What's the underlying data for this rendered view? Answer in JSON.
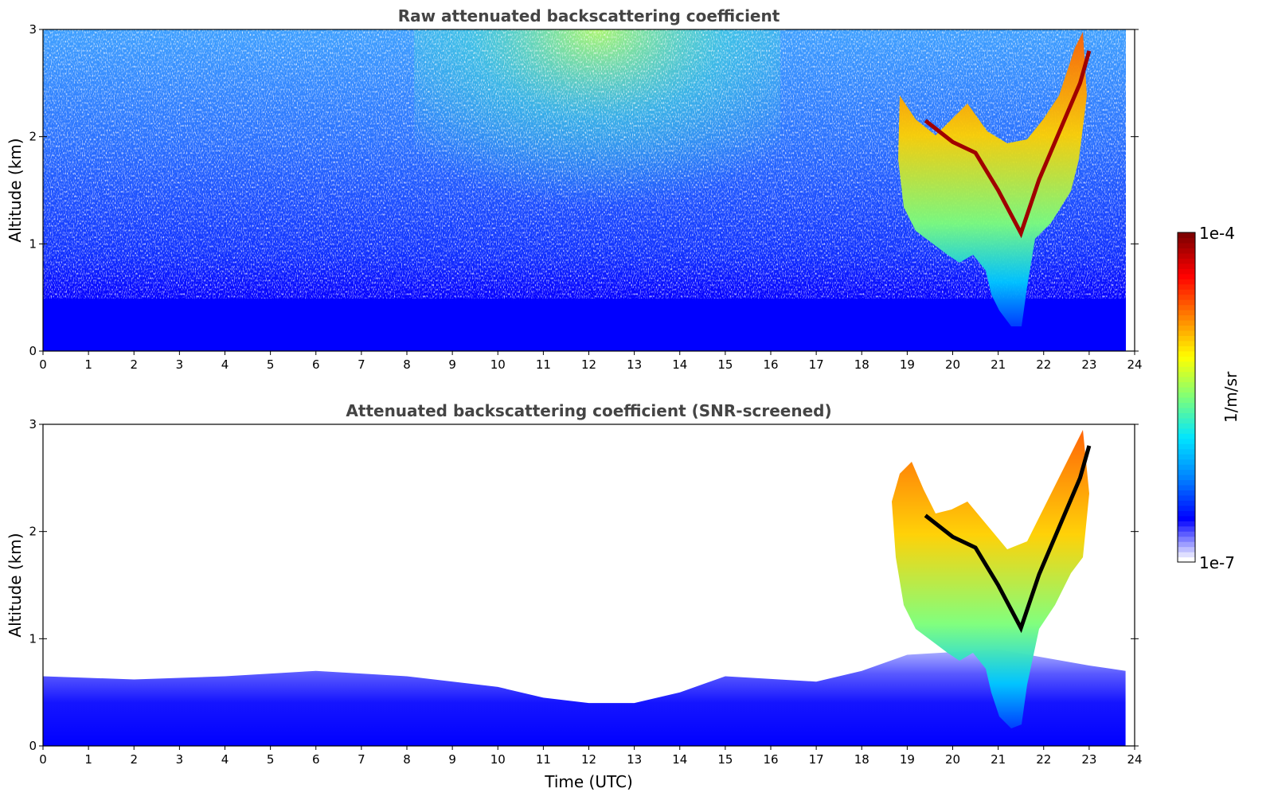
{
  "colormap": [
    "#ffffff",
    "#0000ff",
    "#0080ff",
    "#00e5ff",
    "#7dff7a",
    "#ffff00",
    "#ff8000",
    "#ff0000",
    "#800000"
  ],
  "colorbar": {
    "label": "1/m/sr",
    "max_label": "1e-4",
    "min_label": "1e-7",
    "vmin": 1e-07,
    "vmax": 0.0001,
    "scale": "log"
  },
  "chart_data": [
    {
      "type": "heatmap",
      "title": "Raw attenuated backscattering coefficient",
      "xlabel": "",
      "ylabel": "Altitude (km)",
      "xlim": [
        0,
        24
      ],
      "ylim": [
        0,
        3
      ],
      "x_ticks": [
        "0",
        "1",
        "2",
        "3",
        "4",
        "5",
        "6",
        "7",
        "8",
        "9",
        "10",
        "11",
        "12",
        "13",
        "14",
        "15",
        "16",
        "17",
        "18",
        "19",
        "20",
        "21",
        "22",
        "23",
        "24"
      ],
      "y_ticks": [
        "0",
        "1",
        "2",
        "3"
      ],
      "data_time_end": 23.8,
      "cloud_layer_top_km": [
        [
          19.4,
          2.15
        ],
        [
          20.0,
          1.95
        ],
        [
          20.5,
          1.85
        ],
        [
          21.0,
          1.5
        ],
        [
          21.5,
          1.1
        ],
        [
          21.9,
          1.6
        ],
        [
          22.4,
          2.1
        ],
        [
          22.8,
          2.5
        ],
        [
          23.0,
          2.8
        ]
      ]
    },
    {
      "type": "heatmap",
      "title": "Attenuated backscattering coefficient (SNR-screened)",
      "xlabel": "Time (UTC)",
      "ylabel": "Altitude (km)",
      "xlim": [
        0,
        24
      ],
      "ylim": [
        0,
        3
      ],
      "x_ticks": [
        "0",
        "1",
        "2",
        "3",
        "4",
        "5",
        "6",
        "7",
        "8",
        "9",
        "10",
        "11",
        "12",
        "13",
        "14",
        "15",
        "16",
        "17",
        "18",
        "19",
        "20",
        "21",
        "22",
        "23",
        "24"
      ],
      "y_ticks": [
        "0",
        "1",
        "2",
        "3"
      ],
      "data_time_end": 23.8,
      "boundary_layer_top_km": [
        [
          0,
          0.65
        ],
        [
          2,
          0.62
        ],
        [
          4,
          0.65
        ],
        [
          6,
          0.7
        ],
        [
          8,
          0.65
        ],
        [
          10,
          0.55
        ],
        [
          11,
          0.45
        ],
        [
          12,
          0.4
        ],
        [
          13,
          0.4
        ],
        [
          14,
          0.5
        ],
        [
          15,
          0.65
        ],
        [
          17,
          0.6
        ],
        [
          18,
          0.7
        ],
        [
          19,
          0.85
        ],
        [
          21,
          0.9
        ],
        [
          23,
          0.75
        ],
        [
          23.8,
          0.7
        ]
      ]
    }
  ]
}
